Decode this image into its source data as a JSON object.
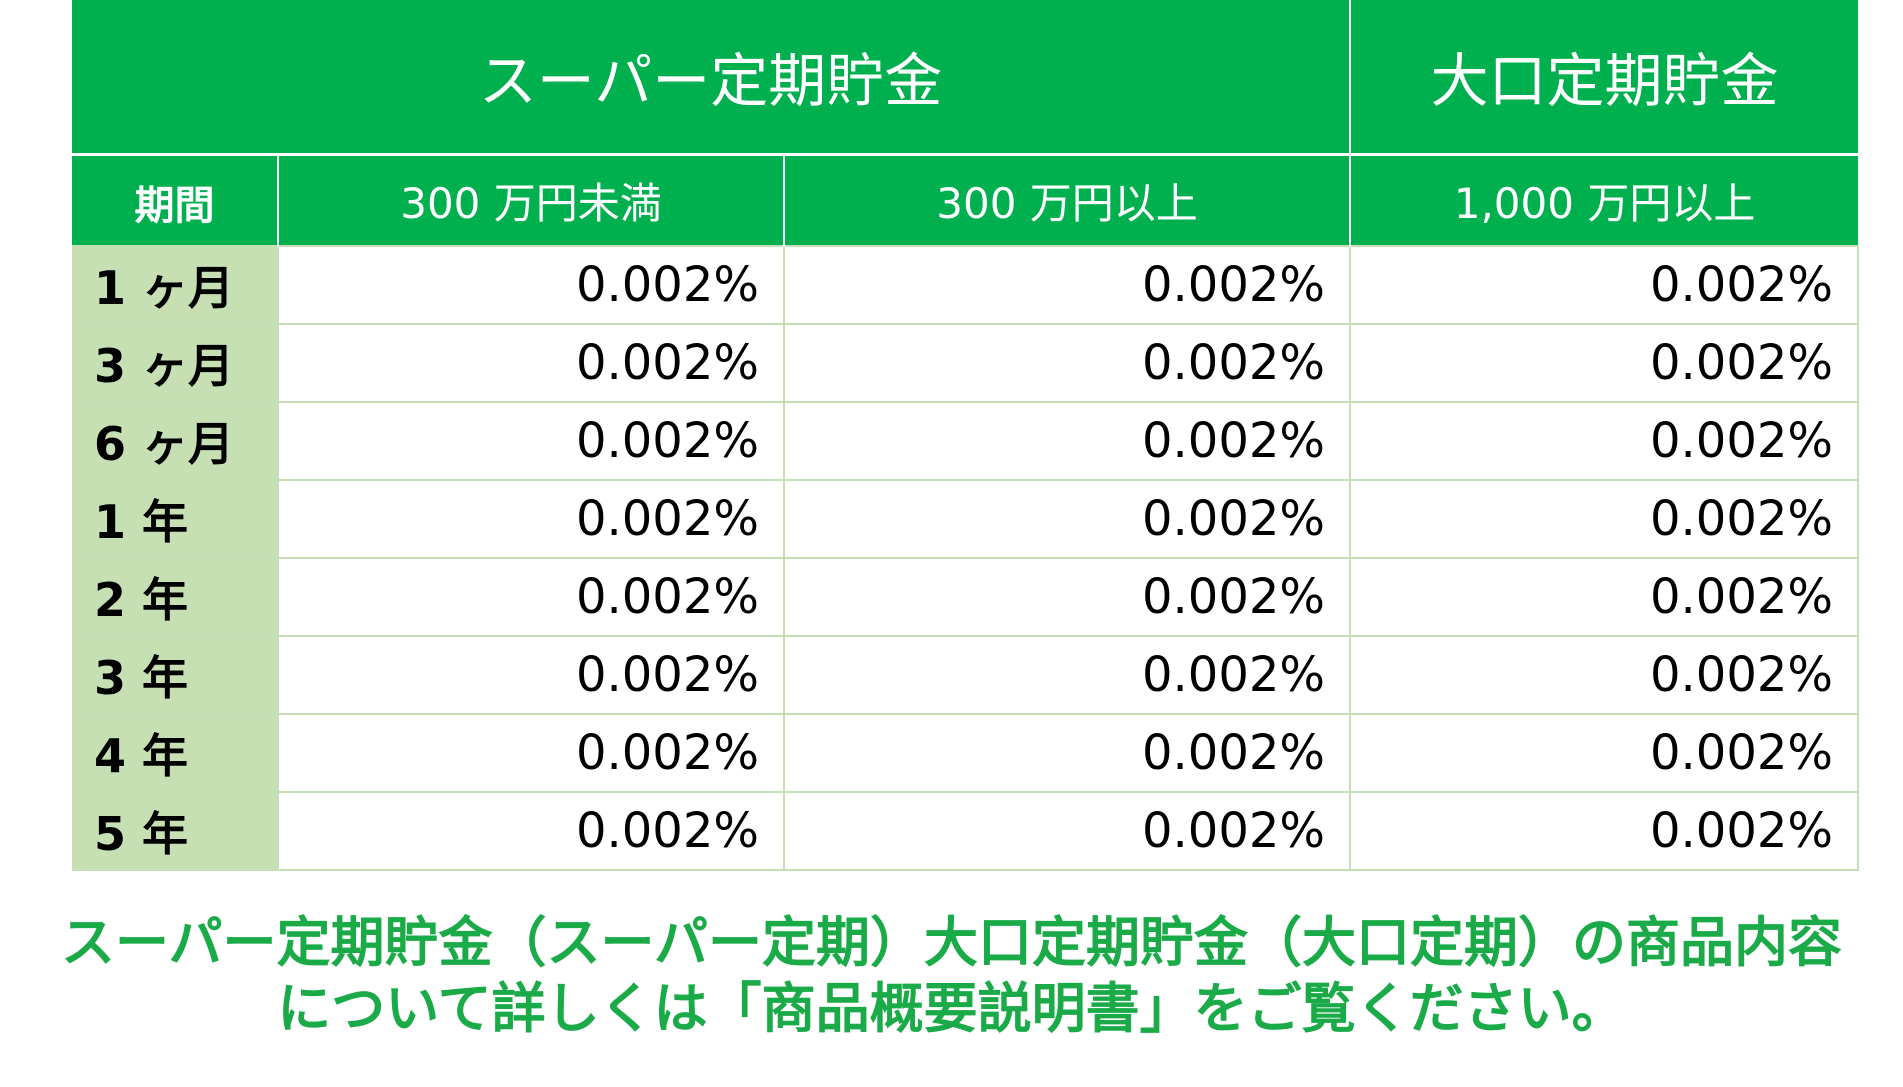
{
  "table": {
    "header": {
      "super_title": "スーパー定期貯金",
      "large_title": "大口定期貯金",
      "period_label": "期間",
      "columns": [
        "300 万円未満",
        "300 万円以上",
        "1,000 万円以上"
      ]
    },
    "rows": [
      {
        "period": "1 ヶ月",
        "rates": [
          "0.002%",
          "0.002%",
          "0.002%"
        ]
      },
      {
        "period": "3 ヶ月",
        "rates": [
          "0.002%",
          "0.002%",
          "0.002%"
        ]
      },
      {
        "period": "6 ヶ月",
        "rates": [
          "0.002%",
          "0.002%",
          "0.002%"
        ]
      },
      {
        "period": "1 年",
        "rates": [
          "0.002%",
          "0.002%",
          "0.002%"
        ]
      },
      {
        "period": "2 年",
        "rates": [
          "0.002%",
          "0.002%",
          "0.002%"
        ]
      },
      {
        "period": "3 年",
        "rates": [
          "0.002%",
          "0.002%",
          "0.002%"
        ]
      },
      {
        "period": "4 年",
        "rates": [
          "0.002%",
          "0.002%",
          "0.002%"
        ]
      },
      {
        "period": "5 年",
        "rates": [
          "0.002%",
          "0.002%",
          "0.002%"
        ]
      }
    ]
  },
  "note": {
    "line1": "スーパー定期貯金（スーパー定期）大口定期貯金（大口定期）の商品内容",
    "line2": "について詳しくは「商品概要説明書」をご覧ください。"
  },
  "colors": {
    "header_green": "#00b04f",
    "period_bg": "#c6e0b4",
    "grid_line": "#c5e0b4",
    "note_text": "#1aab48"
  }
}
